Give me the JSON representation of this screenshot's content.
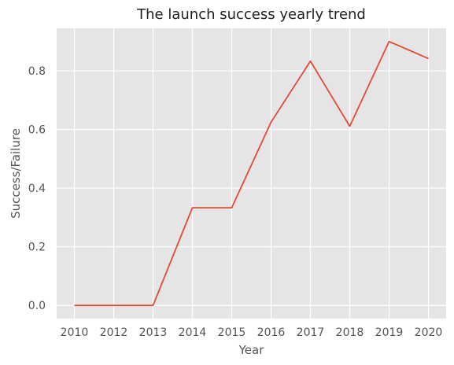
{
  "chart_data": {
    "type": "line",
    "title": "The launch success yearly trend",
    "xlabel": "Year",
    "ylabel": "Success/Failure",
    "categories": [
      "2010",
      "2012",
      "2013",
      "2014",
      "2015",
      "2016",
      "2017",
      "2018",
      "2019",
      "2020"
    ],
    "series": [
      {
        "values": [
          0.0,
          0.0,
          0.0,
          0.333,
          0.333,
          0.625,
          0.833,
          0.611,
          0.9,
          0.842
        ]
      }
    ],
    "ylim": [
      -0.045,
      0.945
    ],
    "yticks": [
      0.0,
      0.2,
      0.4,
      0.6,
      0.8
    ],
    "ytick_labels": [
      "0.0",
      "0.2",
      "0.4",
      "0.6",
      "0.8"
    ],
    "grid": true,
    "line_color": "#E24A33",
    "background_color": "#E5E5E5",
    "grid_color": "#FFFFFF"
  }
}
